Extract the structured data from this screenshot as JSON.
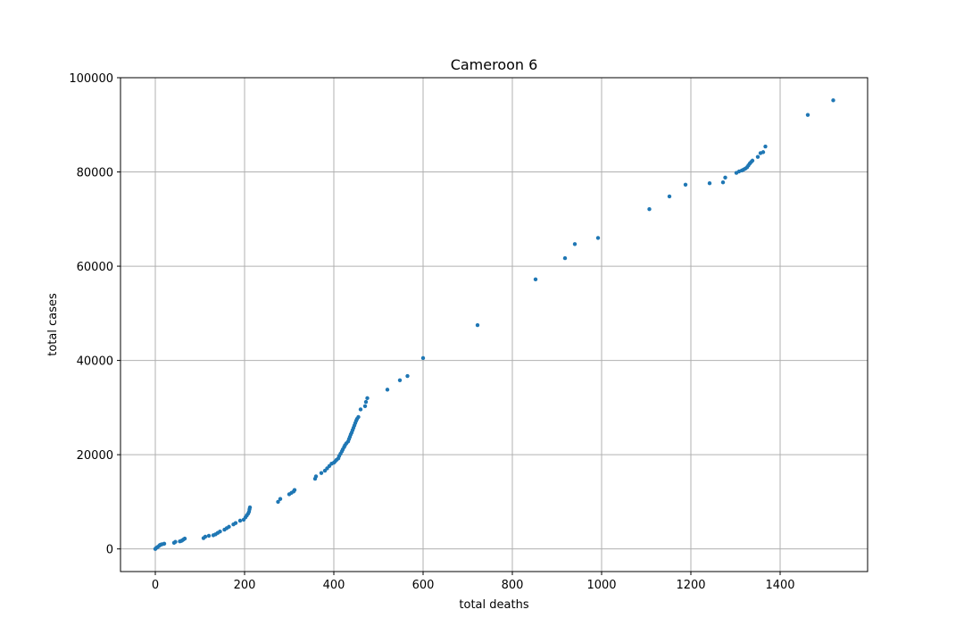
{
  "chart_data": {
    "type": "scatter",
    "title": "Cameroon 6",
    "xlabel": "total deaths",
    "ylabel": "total cases",
    "xlim": [
      -78,
      1596
    ],
    "ylim": [
      -4800,
      100000
    ],
    "xticks": [
      0,
      200,
      400,
      600,
      800,
      1000,
      1200,
      1400
    ],
    "xtick_labels": [
      "0",
      "200",
      "400",
      "600",
      "800",
      "1000",
      "1200",
      "1400"
    ],
    "yticks": [
      0,
      20000,
      40000,
      60000,
      80000,
      100000
    ],
    "ytick_labels": [
      "0",
      "20000",
      "40000",
      "60000",
      "80000",
      "100000"
    ],
    "grid": true,
    "marker_color": "#1f77b4",
    "series": [
      {
        "points": [
          [
            0,
            0
          ],
          [
            2,
            200
          ],
          [
            5,
            400
          ],
          [
            8,
            600
          ],
          [
            10,
            800
          ],
          [
            12,
            900
          ],
          [
            15,
            1000
          ],
          [
            20,
            1100
          ],
          [
            42,
            1300
          ],
          [
            45,
            1500
          ],
          [
            55,
            1600
          ],
          [
            58,
            1700
          ],
          [
            60,
            1800
          ],
          [
            63,
            2000
          ],
          [
            66,
            2200
          ],
          [
            108,
            2300
          ],
          [
            112,
            2600
          ],
          [
            120,
            2800
          ],
          [
            130,
            2900
          ],
          [
            135,
            3100
          ],
          [
            140,
            3400
          ],
          [
            145,
            3700
          ],
          [
            155,
            4100
          ],
          [
            160,
            4400
          ],
          [
            165,
            4700
          ],
          [
            175,
            5200
          ],
          [
            180,
            5500
          ],
          [
            190,
            6000
          ],
          [
            198,
            6200
          ],
          [
            202,
            6700
          ],
          [
            205,
            7100
          ],
          [
            208,
            7500
          ],
          [
            210,
            7900
          ],
          [
            211,
            8400
          ],
          [
            212,
            8800
          ],
          [
            275,
            10000
          ],
          [
            280,
            10600
          ],
          [
            300,
            11600
          ],
          [
            305,
            11900
          ],
          [
            310,
            12200
          ],
          [
            312,
            12500
          ],
          [
            358,
            14900
          ],
          [
            360,
            15400
          ],
          [
            372,
            16100
          ],
          [
            380,
            16600
          ],
          [
            385,
            17100
          ],
          [
            390,
            17600
          ],
          [
            395,
            18100
          ],
          [
            400,
            18300
          ],
          [
            403,
            18600
          ],
          [
            406,
            18900
          ],
          [
            410,
            19200
          ],
          [
            412,
            19700
          ],
          [
            415,
            20200
          ],
          [
            418,
            20700
          ],
          [
            420,
            21100
          ],
          [
            423,
            21600
          ],
          [
            425,
            22000
          ],
          [
            428,
            22400
          ],
          [
            432,
            22800
          ],
          [
            434,
            23300
          ],
          [
            436,
            23800
          ],
          [
            438,
            24300
          ],
          [
            440,
            24700
          ],
          [
            442,
            25200
          ],
          [
            444,
            25700
          ],
          [
            446,
            26200
          ],
          [
            448,
            26700
          ],
          [
            450,
            27200
          ],
          [
            452,
            27600
          ],
          [
            455,
            28000
          ],
          [
            460,
            29600
          ],
          [
            470,
            30300
          ],
          [
            472,
            31200
          ],
          [
            475,
            32000
          ],
          [
            520,
            33800
          ],
          [
            548,
            35800
          ],
          [
            565,
            36700
          ],
          [
            600,
            40500
          ],
          [
            722,
            47500
          ],
          [
            852,
            57200
          ],
          [
            918,
            61700
          ],
          [
            940,
            64700
          ],
          [
            992,
            66000
          ],
          [
            1107,
            72100
          ],
          [
            1152,
            74800
          ],
          [
            1188,
            77300
          ],
          [
            1242,
            77600
          ],
          [
            1272,
            77800
          ],
          [
            1277,
            78800
          ],
          [
            1302,
            79800
          ],
          [
            1308,
            80100
          ],
          [
            1314,
            80300
          ],
          [
            1318,
            80500
          ],
          [
            1322,
            80700
          ],
          [
            1326,
            81000
          ],
          [
            1329,
            81400
          ],
          [
            1332,
            81800
          ],
          [
            1335,
            82100
          ],
          [
            1338,
            82400
          ],
          [
            1350,
            83200
          ],
          [
            1356,
            84000
          ],
          [
            1362,
            84200
          ],
          [
            1367,
            85400
          ],
          [
            1462,
            92100
          ],
          [
            1519,
            95200
          ]
        ]
      }
    ]
  }
}
